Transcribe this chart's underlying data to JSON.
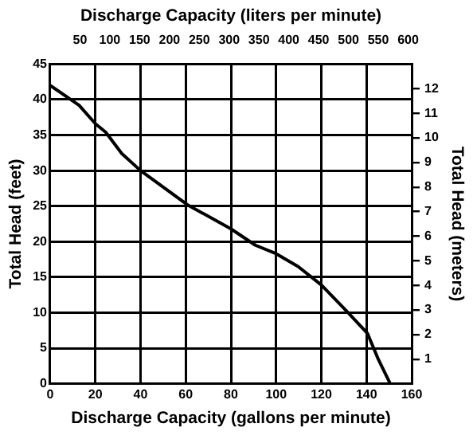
{
  "chart_data": {
    "type": "line",
    "xlabel": "Discharge Capacity (gallons per minute)",
    "ylabel": "Total Head (feet)",
    "x2label": "Discharge Capacity (liters per minute)",
    "y2label": "Total Head (meters)",
    "x": [
      0,
      12.8,
      20,
      24.6,
      31.7,
      40,
      60.7,
      80,
      90.8,
      100,
      109.7,
      120,
      131,
      140.4,
      145,
      150.5
    ],
    "series": [
      {
        "color": "#000000",
        "values": [
          42,
          39.2,
          36.6,
          35.4,
          32.4,
          30,
          25.2,
          21.8,
          19.5,
          18.3,
          16.5,
          13.9,
          10.3,
          7.1,
          3.6,
          0
        ]
      }
    ],
    "xlim": [
      0,
      160
    ],
    "xticks": [
      0,
      20,
      40,
      60,
      80,
      100,
      120,
      140,
      160
    ],
    "ylim": [
      0,
      45
    ],
    "yticks": [
      0,
      5,
      10,
      15,
      20,
      25,
      30,
      35,
      40,
      45
    ],
    "x2lim": [
      0,
      606
    ],
    "x2ticks": [
      50,
      100,
      150,
      200,
      250,
      300,
      350,
      400,
      450,
      500,
      550,
      600
    ],
    "y2lim": [
      0,
      13
    ],
    "y2ticks": [
      1,
      2,
      3,
      4,
      5,
      6,
      7,
      8,
      9,
      10,
      11,
      12
    ],
    "grid": true,
    "legend": false,
    "marker": "none",
    "line_style": "solid"
  }
}
